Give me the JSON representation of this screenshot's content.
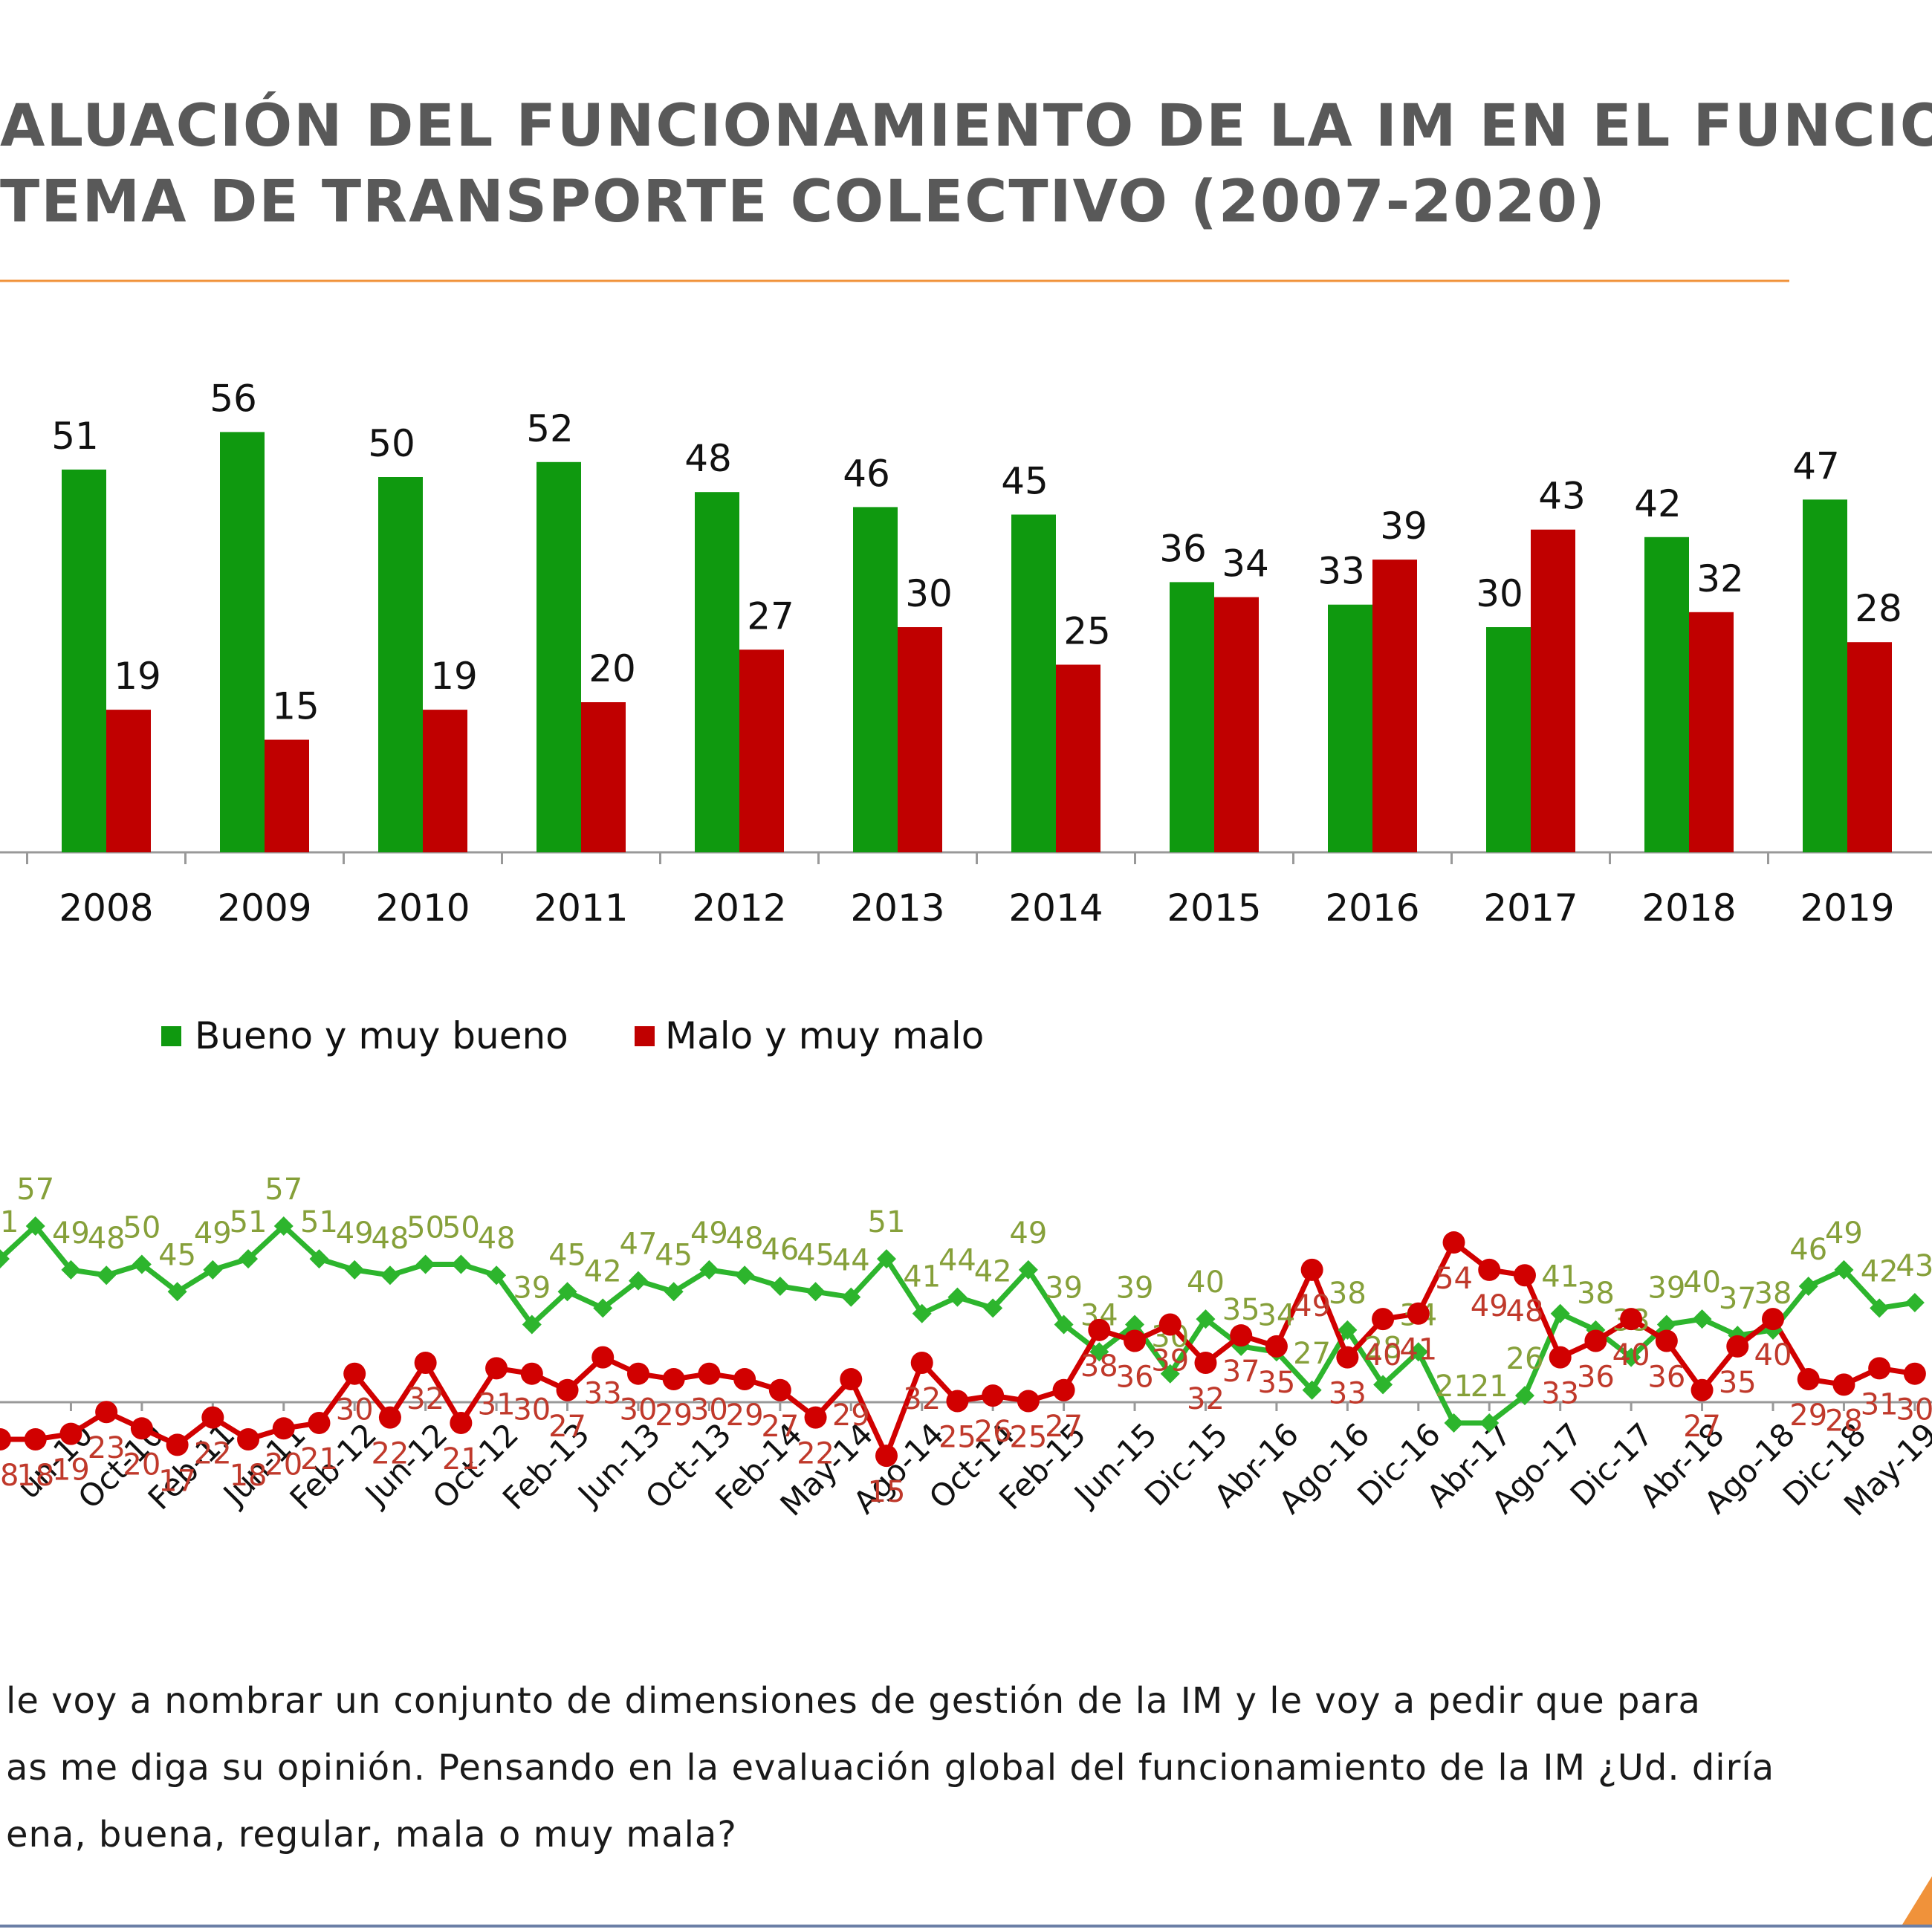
{
  "title": [
    "ALUACIÓN DEL FUNCIONAMIENTO DE LA IM EN EL FUNCIONAMIENT",
    "TEMA DE TRANSPORTE COLECTIVO (2007-2020)"
  ],
  "chart_data": [
    {
      "type": "bar",
      "categories": [
        "2008",
        "2009",
        "2010",
        "2011",
        "2012",
        "2013",
        "2014",
        "2015",
        "2016",
        "2017",
        "2018",
        "2019"
      ],
      "series": [
        {
          "name": "Bueno y muy bueno",
          "color": "#0f990f",
          "values": [
            51,
            56,
            50,
            52,
            48,
            46,
            45,
            36,
            33,
            30,
            42,
            47
          ]
        },
        {
          "name": "Malo y muy malo",
          "color": "#c00000",
          "values": [
            19,
            15,
            19,
            20,
            27,
            30,
            25,
            34,
            39,
            43,
            32,
            28
          ]
        }
      ]
    },
    {
      "type": "line",
      "categories": [
        null,
        null,
        "un-10",
        null,
        "Oct-10",
        null,
        "Feb-11",
        null,
        "Jun-11",
        null,
        "Feb-12",
        null,
        "Jun-12",
        null,
        "Oct-12",
        null,
        "Feb-13",
        null,
        "Jun-13",
        null,
        "Oct-13",
        null,
        "Feb-14",
        null,
        "May-14",
        null,
        "Ago-14",
        null,
        "Oct-14",
        null,
        "Feb-15",
        null,
        "Jun-15",
        null,
        "Dic-15",
        null,
        "Abr-16",
        null,
        "Ago-16",
        null,
        "Dic-16",
        null,
        "Abr-17",
        null,
        "Ago-17",
        null,
        "Dic-17",
        null,
        "Abr-18",
        null,
        "Ago-18",
        null,
        "Dic-18",
        null,
        "May-19"
      ],
      "series": [
        {
          "color": "#2db52d",
          "label_color": "#86a03a",
          "marker": "diamond",
          "values": [
            51,
            57,
            49,
            48,
            50,
            45,
            49,
            51,
            57,
            51,
            49,
            48,
            50,
            50,
            48,
            39,
            45,
            42,
            47,
            45,
            49,
            48,
            46,
            45,
            44,
            51,
            41,
            44,
            42,
            49,
            39,
            34,
            39,
            30,
            40,
            35,
            34,
            27,
            38,
            28,
            34,
            21,
            21,
            26,
            41,
            38,
            33,
            39,
            40,
            37,
            38,
            46,
            49,
            42,
            43
          ]
        },
        {
          "color": "#d10000",
          "label_color": "#c0392b",
          "marker": "circle",
          "values": [
            18,
            18,
            19,
            23,
            20,
            17,
            22,
            18,
            20,
            21,
            30,
            22,
            32,
            21,
            31,
            30,
            27,
            33,
            30,
            29,
            30,
            29,
            27,
            22,
            29,
            15,
            32,
            25,
            26,
            25,
            27,
            38,
            36,
            39,
            32,
            37,
            35,
            49,
            33,
            40,
            41,
            54,
            49,
            48,
            33,
            36,
            40,
            36,
            27,
            35,
            40,
            29,
            28,
            31,
            30
          ]
        }
      ]
    }
  ],
  "footnote": [
    "le voy a nombrar un conjunto de dimensiones de gestión de la IM y le voy a pedir que para",
    "as me diga su opinión. Pensando en la evaluación global del funcionamiento de la IM ¿Ud. diría",
    "ena, buena, regular, mala o muy mala?"
  ]
}
